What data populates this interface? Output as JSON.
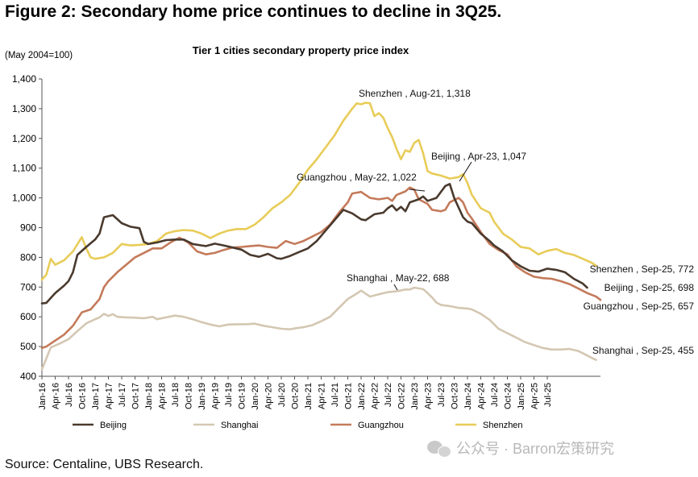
{
  "figure_title": "Figure 2: Secondary home price continues to decline in 3Q25.",
  "source": "Source: Centaline, UBS Research.",
  "watermark": "公众号 · Barron宏策研究",
  "colors": {
    "Beijing": "#4a3a2e",
    "Shanghai": "#d4c7b2",
    "Guangzhou": "#c47a5a",
    "Shenzhen": "#e8cc58"
  },
  "chart_data": {
    "type": "line",
    "title": "Tier 1 cities secondary property price index",
    "ylabel": "(May 2004=100)",
    "xlabel": "",
    "ylim": [
      400,
      1400
    ],
    "yticks": [
      400,
      500,
      600,
      700,
      800,
      900,
      1000,
      1100,
      1200,
      1300,
      1400
    ],
    "ytick_labels": [
      "400",
      "500",
      "600",
      "700",
      "800",
      "900",
      "1,000",
      "1,100",
      "1,200",
      "1,300",
      "1,400"
    ],
    "x_start": "Jan-16",
    "x_end": "Sep-25",
    "x_ticks": [
      "Jan-16",
      "Apr-16",
      "Jul-16",
      "Oct-16",
      "Jan-17",
      "Apr-17",
      "Jul-17",
      "Oct-17",
      "Jan-18",
      "Apr-18",
      "Jul-18",
      "Oct-18",
      "Jan-19",
      "Apr-19",
      "Jul-19",
      "Oct-19",
      "Jan-20",
      "Apr-20",
      "Jul-20",
      "Oct-20",
      "Jan-21",
      "Apr-21",
      "Jul-21",
      "Oct-21",
      "Jan-22",
      "Apr-22",
      "Jul-22",
      "Oct-22",
      "Jan-23",
      "Apr-23",
      "Jul-23",
      "Oct-23",
      "Jan-24",
      "Apr-24",
      "Jul-24",
      "Oct-24",
      "Jan-25",
      "Apr-25",
      "Jul-25"
    ],
    "grid": false,
    "legend_position": "bottom",
    "series": [
      {
        "name": "Beijing",
        "points": [
          [
            0,
            645
          ],
          [
            1,
            647
          ],
          [
            3,
            680
          ],
          [
            5,
            705
          ],
          [
            6,
            720
          ],
          [
            7,
            750
          ],
          [
            8,
            808
          ],
          [
            10,
            835
          ],
          [
            12,
            860
          ],
          [
            13,
            880
          ],
          [
            14,
            935
          ],
          [
            16,
            942
          ],
          [
            18,
            915
          ],
          [
            20,
            903
          ],
          [
            22,
            898
          ],
          [
            23,
            852
          ],
          [
            24,
            845
          ],
          [
            26,
            850
          ],
          [
            28,
            858
          ],
          [
            30,
            860
          ],
          [
            32,
            860
          ],
          [
            34,
            845
          ],
          [
            36,
            840
          ],
          [
            37,
            838
          ],
          [
            39,
            846
          ],
          [
            41,
            840
          ],
          [
            43,
            833
          ],
          [
            45,
            826
          ],
          [
            47,
            808
          ],
          [
            49,
            802
          ],
          [
            51,
            812
          ],
          [
            53,
            797
          ],
          [
            54,
            795
          ],
          [
            56,
            805
          ],
          [
            58,
            818
          ],
          [
            60,
            830
          ],
          [
            62,
            855
          ],
          [
            64,
            890
          ],
          [
            66,
            925
          ],
          [
            68,
            960
          ],
          [
            70,
            948
          ],
          [
            72,
            928
          ],
          [
            73,
            925
          ],
          [
            75,
            945
          ],
          [
            77,
            950
          ],
          [
            78,
            965
          ],
          [
            79,
            975
          ],
          [
            80,
            958
          ],
          [
            81,
            970
          ],
          [
            82,
            955
          ],
          [
            83,
            985
          ],
          [
            85,
            995
          ],
          [
            86,
            1005
          ],
          [
            87,
            990
          ],
          [
            89,
            1000
          ],
          [
            91,
            1040
          ],
          [
            92,
            1047
          ],
          [
            93,
            1000
          ],
          [
            95,
            935
          ],
          [
            96,
            920
          ],
          [
            97,
            915
          ],
          [
            99,
            880
          ],
          [
            101,
            855
          ],
          [
            102,
            840
          ],
          [
            104,
            820
          ],
          [
            106,
            790
          ],
          [
            108,
            770
          ],
          [
            110,
            755
          ],
          [
            112,
            752
          ],
          [
            114,
            762
          ],
          [
            116,
            758
          ],
          [
            118,
            750
          ],
          [
            120,
            728
          ],
          [
            122,
            712
          ],
          [
            123,
            698
          ]
        ]
      },
      {
        "name": "Shanghai",
        "points": [
          [
            0,
            423
          ],
          [
            1,
            460
          ],
          [
            2,
            497
          ],
          [
            4,
            510
          ],
          [
            6,
            525
          ],
          [
            8,
            552
          ],
          [
            10,
            578
          ],
          [
            12,
            592
          ],
          [
            13,
            598
          ],
          [
            14,
            610
          ],
          [
            15,
            603
          ],
          [
            16,
            609
          ],
          [
            17,
            600
          ],
          [
            19,
            598
          ],
          [
            21,
            597
          ],
          [
            23,
            595
          ],
          [
            25,
            600
          ],
          [
            26,
            592
          ],
          [
            28,
            598
          ],
          [
            30,
            604
          ],
          [
            32,
            600
          ],
          [
            34,
            592
          ],
          [
            36,
            582
          ],
          [
            38,
            574
          ],
          [
            40,
            568
          ],
          [
            42,
            574
          ],
          [
            44,
            575
          ],
          [
            46,
            575
          ],
          [
            48,
            577
          ],
          [
            50,
            570
          ],
          [
            52,
            565
          ],
          [
            54,
            560
          ],
          [
            56,
            558
          ],
          [
            57,
            561
          ],
          [
            59,
            565
          ],
          [
            61,
            572
          ],
          [
            63,
            585
          ],
          [
            65,
            600
          ],
          [
            67,
            630
          ],
          [
            69,
            660
          ],
          [
            71,
            678
          ],
          [
            72,
            688
          ],
          [
            74,
            668
          ],
          [
            76,
            676
          ],
          [
            78,
            683
          ],
          [
            80,
            686
          ],
          [
            82,
            692
          ],
          [
            83,
            692
          ],
          [
            84,
            698
          ],
          [
            86,
            693
          ],
          [
            87,
            680
          ],
          [
            88,
            665
          ],
          [
            89,
            648
          ],
          [
            90,
            640
          ],
          [
            92,
            636
          ],
          [
            94,
            630
          ],
          [
            96,
            628
          ],
          [
            97,
            625
          ],
          [
            99,
            610
          ],
          [
            101,
            590
          ],
          [
            103,
            560
          ],
          [
            105,
            545
          ],
          [
            107,
            530
          ],
          [
            109,
            515
          ],
          [
            111,
            505
          ],
          [
            113,
            495
          ],
          [
            115,
            490
          ],
          [
            117,
            490
          ],
          [
            119,
            492
          ],
          [
            121,
            485
          ],
          [
            123,
            470
          ],
          [
            124,
            462
          ],
          [
            125,
            455
          ]
        ]
      },
      {
        "name": "Guangzhou",
        "points": [
          [
            0,
            495
          ],
          [
            1,
            500
          ],
          [
            3,
            520
          ],
          [
            5,
            540
          ],
          [
            7,
            570
          ],
          [
            9,
            615
          ],
          [
            11,
            625
          ],
          [
            13,
            660
          ],
          [
            14,
            700
          ],
          [
            15,
            720
          ],
          [
            17,
            750
          ],
          [
            19,
            775
          ],
          [
            21,
            800
          ],
          [
            23,
            815
          ],
          [
            25,
            830
          ],
          [
            27,
            830
          ],
          [
            29,
            850
          ],
          [
            31,
            866
          ],
          [
            33,
            850
          ],
          [
            35,
            820
          ],
          [
            37,
            810
          ],
          [
            39,
            815
          ],
          [
            41,
            825
          ],
          [
            43,
            833
          ],
          [
            45,
            835
          ],
          [
            47,
            838
          ],
          [
            49,
            840
          ],
          [
            51,
            835
          ],
          [
            53,
            832
          ],
          [
            55,
            855
          ],
          [
            57,
            845
          ],
          [
            59,
            855
          ],
          [
            61,
            870
          ],
          [
            63,
            885
          ],
          [
            65,
            910
          ],
          [
            67,
            950
          ],
          [
            69,
            985
          ],
          [
            70,
            1015
          ],
          [
            72,
            1020
          ],
          [
            74,
            1000
          ],
          [
            76,
            995
          ],
          [
            78,
            1000
          ],
          [
            79,
            990
          ],
          [
            80,
            1010
          ],
          [
            82,
            1022
          ],
          [
            83,
            1035
          ],
          [
            84,
            1028
          ],
          [
            85,
            995
          ],
          [
            87,
            980
          ],
          [
            88,
            960
          ],
          [
            90,
            955
          ],
          [
            91,
            960
          ],
          [
            92,
            985
          ],
          [
            94,
            1000
          ],
          [
            95,
            985
          ],
          [
            96,
            950
          ],
          [
            97,
            930
          ],
          [
            99,
            885
          ],
          [
            101,
            845
          ],
          [
            103,
            825
          ],
          [
            105,
            810
          ],
          [
            107,
            770
          ],
          [
            109,
            750
          ],
          [
            111,
            735
          ],
          [
            113,
            730
          ],
          [
            115,
            728
          ],
          [
            117,
            720
          ],
          [
            119,
            710
          ],
          [
            121,
            695
          ],
          [
            123,
            680
          ],
          [
            125,
            668
          ],
          [
            126,
            657
          ]
        ]
      },
      {
        "name": "Shenzhen",
        "points": [
          [
            0,
            725
          ],
          [
            1,
            742
          ],
          [
            2,
            795
          ],
          [
            3,
            775
          ],
          [
            5,
            790
          ],
          [
            7,
            820
          ],
          [
            9,
            868
          ],
          [
            10,
            830
          ],
          [
            11,
            800
          ],
          [
            12,
            795
          ],
          [
            14,
            800
          ],
          [
            16,
            815
          ],
          [
            18,
            845
          ],
          [
            20,
            840
          ],
          [
            22,
            842
          ],
          [
            24,
            845
          ],
          [
            26,
            855
          ],
          [
            28,
            880
          ],
          [
            30,
            888
          ],
          [
            32,
            892
          ],
          [
            34,
            890
          ],
          [
            36,
            880
          ],
          [
            38,
            865
          ],
          [
            40,
            880
          ],
          [
            42,
            890
          ],
          [
            44,
            895
          ],
          [
            46,
            895
          ],
          [
            48,
            910
          ],
          [
            50,
            935
          ],
          [
            52,
            965
          ],
          [
            54,
            985
          ],
          [
            56,
            1010
          ],
          [
            58,
            1050
          ],
          [
            60,
            1095
          ],
          [
            62,
            1130
          ],
          [
            64,
            1170
          ],
          [
            66,
            1210
          ],
          [
            68,
            1260
          ],
          [
            70,
            1300
          ],
          [
            71,
            1318
          ],
          [
            72,
            1315
          ],
          [
            73,
            1320
          ],
          [
            74,
            1318
          ],
          [
            75,
            1275
          ],
          [
            76,
            1285
          ],
          [
            77,
            1270
          ],
          [
            78,
            1235
          ],
          [
            79,
            1205
          ],
          [
            80,
            1165
          ],
          [
            81,
            1130
          ],
          [
            82,
            1160
          ],
          [
            83,
            1155
          ],
          [
            84,
            1185
          ],
          [
            85,
            1195
          ],
          [
            86,
            1150
          ],
          [
            87,
            1090
          ],
          [
            88,
            1082
          ],
          [
            90,
            1075
          ],
          [
            92,
            1065
          ],
          [
            94,
            1070
          ],
          [
            95,
            1080
          ],
          [
            96,
            1050
          ],
          [
            97,
            1010
          ],
          [
            99,
            965
          ],
          [
            101,
            950
          ],
          [
            102,
            920
          ],
          [
            104,
            880
          ],
          [
            106,
            860
          ],
          [
            108,
            835
          ],
          [
            110,
            830
          ],
          [
            112,
            810
          ],
          [
            114,
            822
          ],
          [
            116,
            828
          ],
          [
            118,
            815
          ],
          [
            120,
            808
          ],
          [
            122,
            795
          ],
          [
            124,
            782
          ],
          [
            125,
            772
          ]
        ]
      }
    ],
    "annotations": [
      {
        "series": "Shenzhen",
        "text": "Shenzhen , Aug-21,  1,318"
      },
      {
        "series": "Beijing",
        "text": "Beijing , Apr-23,  1,047"
      },
      {
        "series": "Guangzhou",
        "text": "Guangzhou , May-22,  1,022"
      },
      {
        "series": "Shanghai",
        "text": "Shanghai , May-22,  688"
      },
      {
        "series": "Shenzhen",
        "text": "Shenzhen , Sep-25,  772"
      },
      {
        "series": "Beijing",
        "text": "Beijing , Sep-25,  698"
      },
      {
        "series": "Guangzhou",
        "text": "Guangzhou , Sep-25,  657"
      },
      {
        "series": "Shanghai",
        "text": "Shanghai , Sep-25,  455"
      }
    ]
  }
}
